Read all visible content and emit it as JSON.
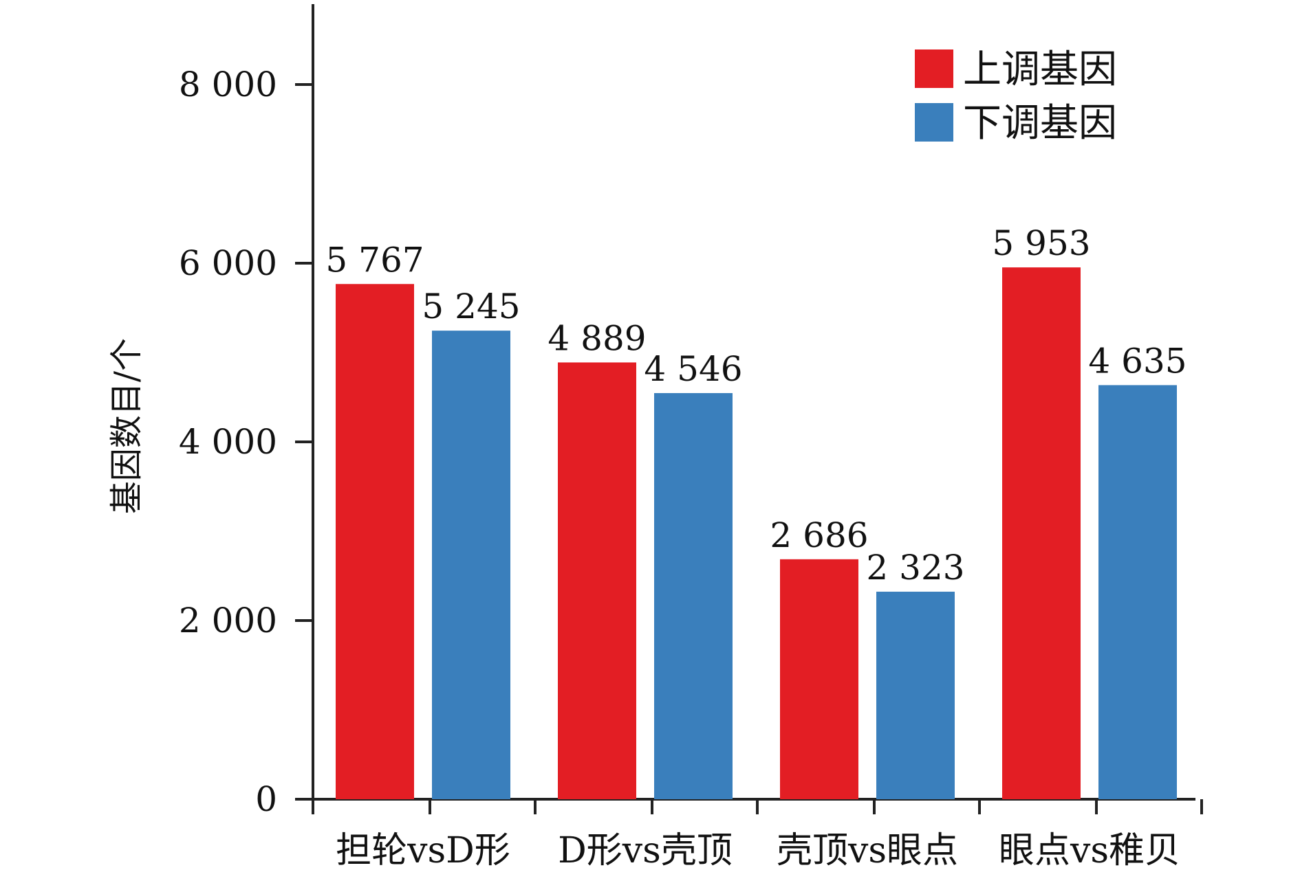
{
  "chart_data": {
    "type": "bar",
    "title": "",
    "xlabel": "",
    "ylabel": "基因数目/个",
    "categories": [
      "担轮vsD形",
      "D形vs壳顶",
      "壳顶vs眼点",
      "眼点vs稚贝"
    ],
    "series": [
      {
        "name": "上调基因",
        "color": "#e31e24",
        "values": [
          5767,
          4889,
          2686,
          5953
        ]
      },
      {
        "name": "下调基因",
        "color": "#3a7fbc",
        "values": [
          5245,
          4546,
          2323,
          4635
        ]
      }
    ],
    "data_labels": [
      [
        "5 767",
        "4 889",
        "2 686",
        "5 953"
      ],
      [
        "5 245",
        "4 546",
        "2 323",
        "4 635"
      ]
    ],
    "yticks": [
      0,
      2000,
      4000,
      6000,
      8000
    ],
    "ytick_labels": [
      "0",
      "2 000",
      "4 000",
      "6 000",
      "8 000"
    ],
    "ylim": [
      0,
      8900
    ],
    "grid": false,
    "legend_position": "top-right"
  }
}
